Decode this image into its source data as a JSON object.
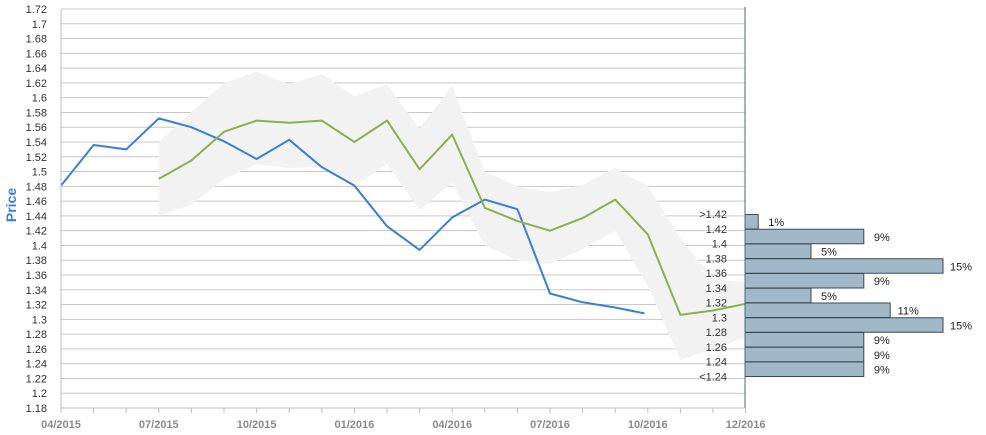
{
  "chart_data": {
    "type": "line",
    "ylabel": "Price",
    "ylim": [
      1.18,
      1.72
    ],
    "y_ticks": [
      1.72,
      1.7,
      1.68,
      1.66,
      1.64,
      1.62,
      1.6,
      1.58,
      1.56,
      1.54,
      1.52,
      1.5,
      1.48,
      1.46,
      1.44,
      1.42,
      1.4,
      1.38,
      1.36,
      1.34,
      1.32,
      1.3,
      1.28,
      1.26,
      1.24,
      1.22,
      1.2,
      1.18
    ],
    "x_ticks": [
      "04/2015",
      "07/2015",
      "10/2015",
      "01/2016",
      "04/2016",
      "07/2016",
      "10/2016",
      "12/2016"
    ],
    "x_tick_month_index": [
      0,
      3,
      6,
      9,
      12,
      15,
      18,
      21
    ],
    "grid": true,
    "colors": {
      "actual": "#3a7fd5",
      "forecast": "#8cb050",
      "band": "#f2f2f2",
      "bars": "#a0b8c8",
      "bar_edge": "#3a4a55",
      "ylabel": "#3a7fd5"
    },
    "series": [
      {
        "key": "actual",
        "x": [
          0,
          1,
          2,
          3,
          4,
          5,
          6,
          7,
          8,
          9,
          10,
          11,
          12,
          13,
          14,
          15,
          16,
          17,
          17.9
        ],
        "values": [
          1.481,
          1.536,
          1.53,
          1.572,
          1.56,
          1.541,
          1.517,
          1.543,
          1.506,
          1.481,
          1.426,
          1.394,
          1.438,
          1.462,
          1.449,
          1.335,
          1.323,
          1.316,
          1.308
        ]
      },
      {
        "key": "forecast",
        "x": [
          3,
          4,
          5,
          6,
          7,
          8,
          9,
          10,
          11,
          12,
          13,
          14,
          15,
          16,
          17,
          18,
          19,
          20,
          21
        ],
        "values": [
          1.49,
          1.515,
          1.554,
          1.569,
          1.566,
          1.569,
          1.54,
          1.569,
          1.503,
          1.55,
          1.451,
          1.433,
          1.42,
          1.437,
          1.462,
          1.415,
          1.306,
          1.312,
          1.321
        ]
      }
    ],
    "band": {
      "x": [
        3,
        4,
        5,
        6,
        7,
        8,
        9,
        10,
        11,
        12,
        13,
        14,
        15,
        16,
        17,
        18,
        19,
        20,
        21
      ],
      "upper": [
        1.54,
        1.58,
        1.62,
        1.635,
        1.618,
        1.632,
        1.602,
        1.618,
        1.558,
        1.616,
        1.5,
        1.48,
        1.472,
        1.482,
        1.505,
        1.48,
        1.41,
        1.355,
        1.35
      ],
      "lower": [
        1.44,
        1.455,
        1.49,
        1.51,
        1.505,
        1.506,
        1.48,
        1.51,
        1.448,
        1.485,
        1.4,
        1.38,
        1.375,
        1.395,
        1.42,
        1.345,
        1.245,
        1.26,
        1.275
      ]
    },
    "distribution": {
      "labels": [
        ">1.42",
        "1.42",
        "1.4",
        "1.38",
        "1.36",
        "1.34",
        "1.32",
        "1.3",
        "1.28",
        "1.26",
        "1.24",
        "<1.24"
      ],
      "percent_labels": [
        "1%",
        "9%",
        "5%",
        "15%",
        "9%",
        "5%",
        "11%",
        "15%",
        "9%",
        "9%",
        "9%",
        ""
      ],
      "values": [
        1,
        9,
        5,
        15,
        9,
        5,
        11,
        15,
        9,
        9,
        9,
        0
      ]
    }
  }
}
